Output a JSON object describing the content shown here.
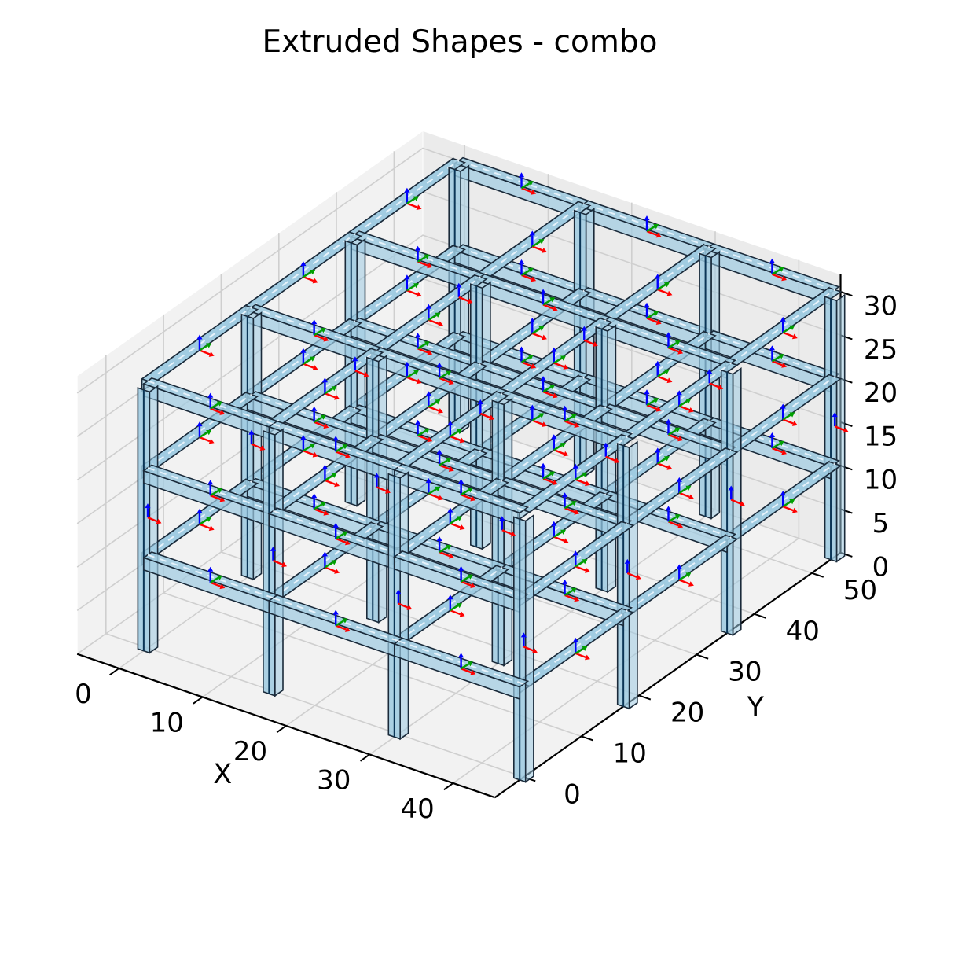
{
  "chart_data": {
    "type": "3d-structural-frame",
    "title": "Extruded Shapes - combo",
    "xlabel": "X",
    "ylabel": "Y",
    "zlabel": "",
    "x_ticks": [
      "0",
      "10",
      "20",
      "30",
      "40"
    ],
    "y_ticks": [
      "0",
      "10",
      "20",
      "30",
      "40",
      "50"
    ],
    "z_ticks": [
      "0",
      "5",
      "10",
      "15",
      "20",
      "25",
      "30"
    ],
    "xlim": [
      -5,
      45
    ],
    "ylim": [
      -5,
      55
    ],
    "zlim": [
      0,
      32
    ],
    "grid": true,
    "grid_x": [
      0,
      15,
      30,
      45
    ],
    "grid_y": [
      0,
      18,
      36,
      54
    ],
    "levels_z": [
      0,
      10,
      20,
      30
    ],
    "member_color": "#9ecae1",
    "edge_color": "#1a2a3a",
    "local_axis_colors": {
      "x": "#ff0000",
      "y": "#00a000",
      "z": "#0000ff"
    }
  }
}
